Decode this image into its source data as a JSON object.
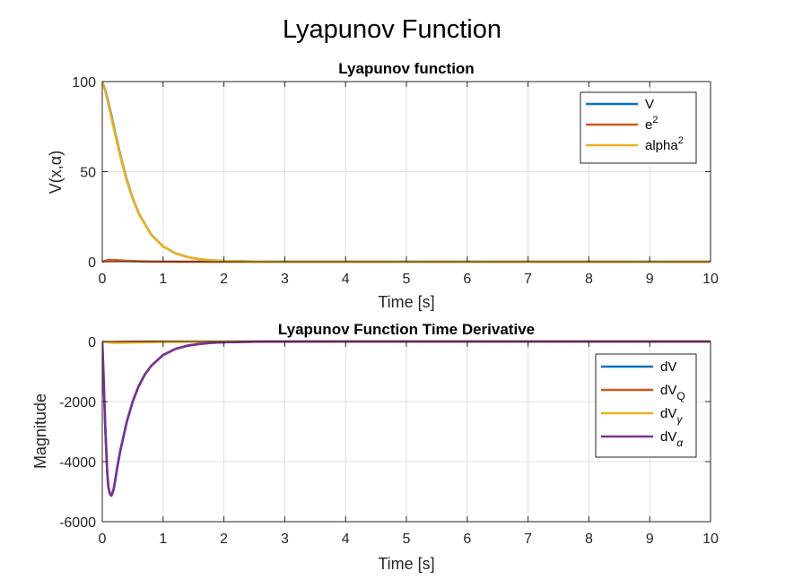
{
  "figure": {
    "title": "Lyapunov Function"
  },
  "chart_data": [
    {
      "type": "line",
      "title": "Lyapunov function",
      "xlabel": "Time [s]",
      "ylabel": "V(x,α)",
      "xlim": [
        0,
        10
      ],
      "ylim": [
        0,
        100
      ],
      "xticks": [
        "0",
        "1",
        "2",
        "3",
        "4",
        "5",
        "6",
        "7",
        "8",
        "9",
        "10"
      ],
      "yticks": [
        "0",
        "50",
        "100"
      ],
      "ytick_values": [
        0,
        50,
        100
      ],
      "grid": true,
      "legend_position": "top-right",
      "series": [
        {
          "name": "V",
          "legend_label": "V",
          "legend_sup": "",
          "legend_sub": "",
          "color": "#0072BD",
          "x": [
            0,
            0.05,
            0.1,
            0.15,
            0.2,
            0.3,
            0.4,
            0.5,
            0.6,
            0.8,
            1.0,
            1.2,
            1.4,
            1.6,
            1.8,
            2.0,
            2.5,
            3,
            4,
            5,
            6,
            7,
            8,
            9,
            10
          ],
          "y": [
            100,
            95.2,
            88.5,
            81,
            73.3,
            58.6,
            45.8,
            35.2,
            26.8,
            15.2,
            8.5,
            4.7,
            2.6,
            1.4,
            0.8,
            0.4,
            0.1,
            0,
            0,
            0,
            0,
            0,
            0,
            0,
            0
          ]
        },
        {
          "name": "e^2",
          "legend_label": "e",
          "legend_sup": "2",
          "legend_sub": "",
          "color": "#D95319",
          "x": [
            0,
            0.05,
            0.1,
            0.15,
            0.2,
            0.3,
            0.4,
            0.5,
            0.6,
            0.8,
            1.0,
            1.2,
            1.5,
            2.0,
            3,
            4,
            5,
            6,
            7,
            8,
            9,
            10
          ],
          "y": [
            0,
            0.5,
            0.9,
            1.0,
            0.9,
            0.7,
            0.5,
            0.35,
            0.25,
            0.12,
            0.06,
            0.03,
            0.01,
            0,
            0,
            0,
            0,
            0,
            0,
            0,
            0,
            0
          ]
        },
        {
          "name": "alpha^2",
          "legend_label": "alpha",
          "legend_sup": "2",
          "legend_sub": "",
          "color": "#EDB120",
          "x": [
            0,
            0.05,
            0.1,
            0.15,
            0.2,
            0.3,
            0.4,
            0.5,
            0.6,
            0.8,
            1.0,
            1.2,
            1.4,
            1.6,
            1.8,
            2.0,
            2.5,
            3,
            4,
            5,
            6,
            7,
            8,
            9,
            10
          ],
          "y": [
            100,
            94.7,
            87.6,
            80,
            72.4,
            57.9,
            45.3,
            34.9,
            26.6,
            15.1,
            8.45,
            4.68,
            2.58,
            1.4,
            0.8,
            0.4,
            0.1,
            0,
            0,
            0,
            0,
            0,
            0,
            0,
            0
          ]
        }
      ]
    },
    {
      "type": "line",
      "title": "Lyapunov Function Time Derivative",
      "xlabel": "Time [s]",
      "ylabel": "Magnitude",
      "xlim": [
        0,
        10
      ],
      "ylim": [
        -6000,
        0
      ],
      "xticks": [
        "0",
        "1",
        "2",
        "3",
        "4",
        "5",
        "6",
        "7",
        "8",
        "9",
        "10"
      ],
      "yticks": [
        "-6000",
        "-4000",
        "-2000",
        "0"
      ],
      "ytick_values": [
        -6000,
        -4000,
        -2000,
        0
      ],
      "grid": true,
      "legend_position": "top-right",
      "series": [
        {
          "name": "dV",
          "legend_label": "dV",
          "legend_sup": "",
          "legend_sub": "",
          "color": "#0072BD",
          "x": [
            0,
            0.02,
            0.05,
            0.08,
            0.1,
            0.13,
            0.15,
            0.18,
            0.2,
            0.25,
            0.3,
            0.4,
            0.5,
            0.6,
            0.7,
            0.8,
            1.0,
            1.2,
            1.4,
            1.6,
            1.8,
            2.0,
            2.5,
            3,
            4,
            5,
            6,
            7,
            8,
            9,
            10
          ],
          "y": [
            0,
            -1100,
            -2900,
            -4300,
            -4850,
            -5100,
            -5130,
            -4980,
            -4780,
            -4150,
            -3600,
            -2700,
            -2000,
            -1480,
            -1100,
            -820,
            -450,
            -250,
            -140,
            -80,
            -45,
            -25,
            -6,
            -1,
            0,
            0,
            0,
            0,
            0,
            0,
            0
          ]
        },
        {
          "name": "dV_Q",
          "legend_label": "dV",
          "legend_sup": "",
          "legend_sub": "Q",
          "color": "#D95319",
          "x": [
            0,
            0.1,
            0.2,
            0.5,
            1.0,
            2.0,
            10
          ],
          "y": [
            0,
            -20,
            -15,
            -5,
            -1,
            0,
            0
          ]
        },
        {
          "name": "dV_γ",
          "legend_label": "dV",
          "legend_sup": "",
          "legend_sub": "γ",
          "color": "#EDB120",
          "x": [
            0,
            0.1,
            0.2,
            0.4,
            0.6,
            1.0,
            1.5,
            2.0,
            3,
            10
          ],
          "y": [
            0,
            -30,
            -45,
            -40,
            -30,
            -15,
            -6,
            -2,
            0,
            0
          ]
        },
        {
          "name": "dV_α",
          "legend_label": "dV",
          "legend_sup": "",
          "legend_sub": "α",
          "color": "#7E2F8E",
          "x": [
            0,
            0.02,
            0.05,
            0.08,
            0.1,
            0.13,
            0.15,
            0.18,
            0.2,
            0.25,
            0.3,
            0.4,
            0.5,
            0.6,
            0.7,
            0.8,
            1.0,
            1.2,
            1.4,
            1.6,
            1.8,
            2.0,
            2.5,
            3,
            4,
            5,
            6,
            7,
            8,
            9,
            10
          ],
          "y": [
            0,
            -1100,
            -2900,
            -4300,
            -4850,
            -5100,
            -5130,
            -4980,
            -4780,
            -4150,
            -3600,
            -2700,
            -2000,
            -1480,
            -1100,
            -820,
            -450,
            -250,
            -140,
            -80,
            -45,
            -25,
            -6,
            -1,
            0,
            0,
            0,
            0,
            0,
            0,
            0
          ]
        }
      ]
    }
  ]
}
